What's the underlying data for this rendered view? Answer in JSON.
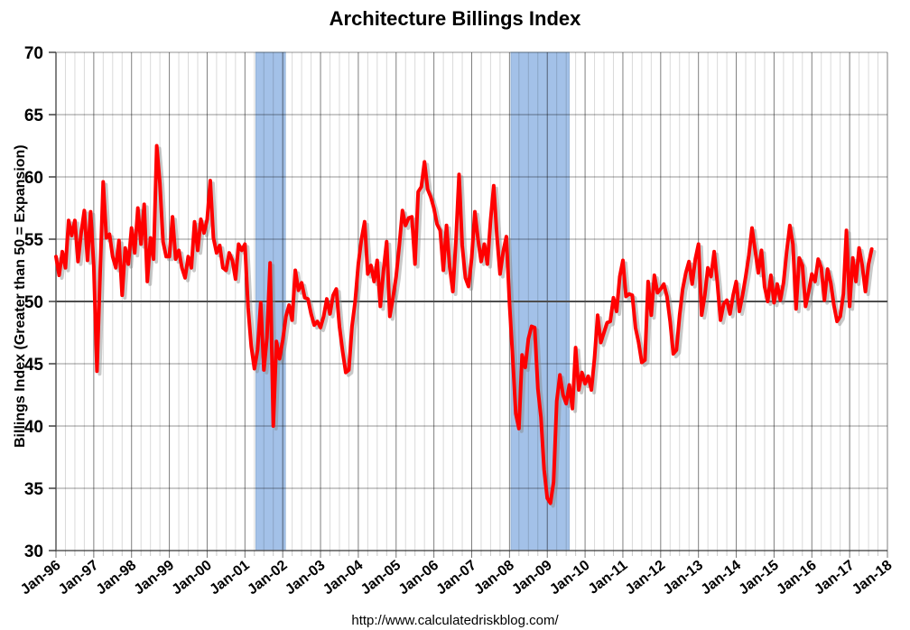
{
  "page": {
    "title": "Architecture Billings Index",
    "footer_url": "http://www.calculatedriskblog.com/"
  },
  "chart_data": {
    "type": "line",
    "title": "Architecture Billings Index",
    "xlabel": "",
    "ylabel": "Billings Index (Greater than 50 = Expansion)",
    "ylim": [
      30,
      70
    ],
    "y_ticks": [
      70,
      65,
      60,
      55,
      50,
      45,
      40,
      35,
      30
    ],
    "x_tick_labels": [
      "Jan-96",
      "Jan-97",
      "Jan-98",
      "Jan-99",
      "Jan-00",
      "Jan-01",
      "Jan-02",
      "Jan-03",
      "Jan-04",
      "Jan-05",
      "Jan-06",
      "Jan-07",
      "Jan-08",
      "Jan-09",
      "Jan-10",
      "Jan-11",
      "Jan-12",
      "Jan-13",
      "Jan-14",
      "Jan-15",
      "Jan-16",
      "Jan-17",
      "Jan-18"
    ],
    "x_range_years": [
      1996,
      2018
    ],
    "grid": {
      "horizontal_every": 5,
      "vertical_minor": "quarterly",
      "vertical_major": "yearly"
    },
    "reference_line_value": 50,
    "line_color": "#FF0000",
    "recession_band_color": "#A3C1E8",
    "recession_bands": [
      {
        "start": 2001.29,
        "end": 2002.07
      },
      {
        "start": 2008.04,
        "end": 2009.58
      }
    ],
    "series": [
      {
        "name": "Architecture Billings Index",
        "frequency": "monthly",
        "start_year": 1996,
        "start_month": 1,
        "values": [
          53.6,
          52.1,
          54.0,
          52.7,
          56.5,
          55.3,
          56.5,
          53.2,
          55.5,
          57.3,
          53.3,
          57.2,
          52.8,
          44.4,
          52.0,
          59.6,
          55.1,
          55.4,
          53.6,
          52.7,
          54.9,
          50.5,
          54.3,
          53.0,
          55.9,
          53.9,
          57.5,
          54.6,
          57.8,
          51.6,
          55.1,
          53.4,
          62.5,
          59.5,
          54.8,
          53.6,
          53.6,
          56.8,
          53.4,
          54.1,
          52.7,
          51.9,
          53.6,
          52.7,
          56.4,
          54.1,
          56.6,
          55.5,
          56.6,
          59.7,
          55.1,
          53.9,
          54.5,
          52.7,
          52.5,
          53.9,
          53.3,
          51.8,
          54.6,
          54.1,
          54.6,
          49.5,
          46.4,
          44.6,
          46.1,
          49.9,
          44.5,
          47.1,
          53.1,
          40.0,
          46.8,
          45.4,
          46.9,
          48.8,
          49.7,
          48.5,
          52.5,
          50.9,
          51.5,
          50.3,
          50.2,
          49.0,
          48.1,
          48.4,
          47.9,
          48.8,
          50.2,
          49.0,
          50.5,
          51.0,
          48.0,
          46.0,
          44.3,
          44.5,
          48.0,
          50.0,
          53.0,
          55.0,
          56.4,
          52.2,
          52.9,
          51.6,
          53.3,
          49.6,
          52.5,
          54.8,
          48.8,
          50.3,
          52.0,
          54.5,
          57.3,
          56.1,
          56.7,
          56.8,
          53.0,
          58.8,
          59.2,
          61.2,
          59.0,
          58.4,
          57.5,
          56.2,
          55.7,
          52.5,
          56.1,
          52.8,
          50.8,
          55.0,
          60.2,
          54.5,
          51.9,
          51.2,
          53.5,
          57.2,
          55.0,
          53.2,
          54.6,
          53.0,
          56.5,
          59.3,
          55.3,
          52.2,
          54.0,
          55.2,
          49.8,
          45.5,
          41.0,
          39.8,
          45.7,
          44.7,
          47.0,
          48.0,
          47.9,
          43.0,
          40.7,
          36.5,
          34.2,
          33.8,
          35.5,
          42.0,
          44.1,
          42.5,
          41.8,
          43.3,
          41.4,
          46.3,
          42.9,
          44.3,
          43.4,
          44.0,
          42.9,
          45.5,
          48.9,
          46.7,
          47.5,
          48.3,
          48.4,
          50.3,
          49.2,
          52.0,
          53.3,
          50.4,
          50.6,
          50.5,
          47.9,
          46.7,
          45.1,
          45.3,
          51.6,
          48.9,
          52.1,
          50.7,
          51.0,
          51.4,
          50.4,
          48.4,
          45.8,
          46.1,
          48.9,
          51.0,
          52.3,
          53.2,
          51.4,
          53.4,
          54.6,
          48.9,
          50.5,
          52.7,
          52.0,
          54.0,
          51.5,
          48.5,
          49.8,
          50.1,
          49.0,
          50.5,
          51.6,
          49.2,
          50.5,
          52.0,
          53.7,
          55.9,
          54.1,
          52.3,
          54.1,
          51.2,
          50.0,
          52.1,
          49.9,
          51.4,
          50.1,
          51.5,
          54.0,
          56.1,
          54.6,
          49.4,
          53.5,
          52.9,
          49.6,
          50.8,
          52.2,
          51.6,
          53.4,
          52.7,
          50.1,
          52.6,
          51.5,
          49.7,
          48.4,
          48.8,
          50.6,
          55.7,
          49.6,
          53.5,
          51.6,
          54.3,
          52.9,
          50.8,
          53.0,
          54.2
        ]
      }
    ]
  }
}
